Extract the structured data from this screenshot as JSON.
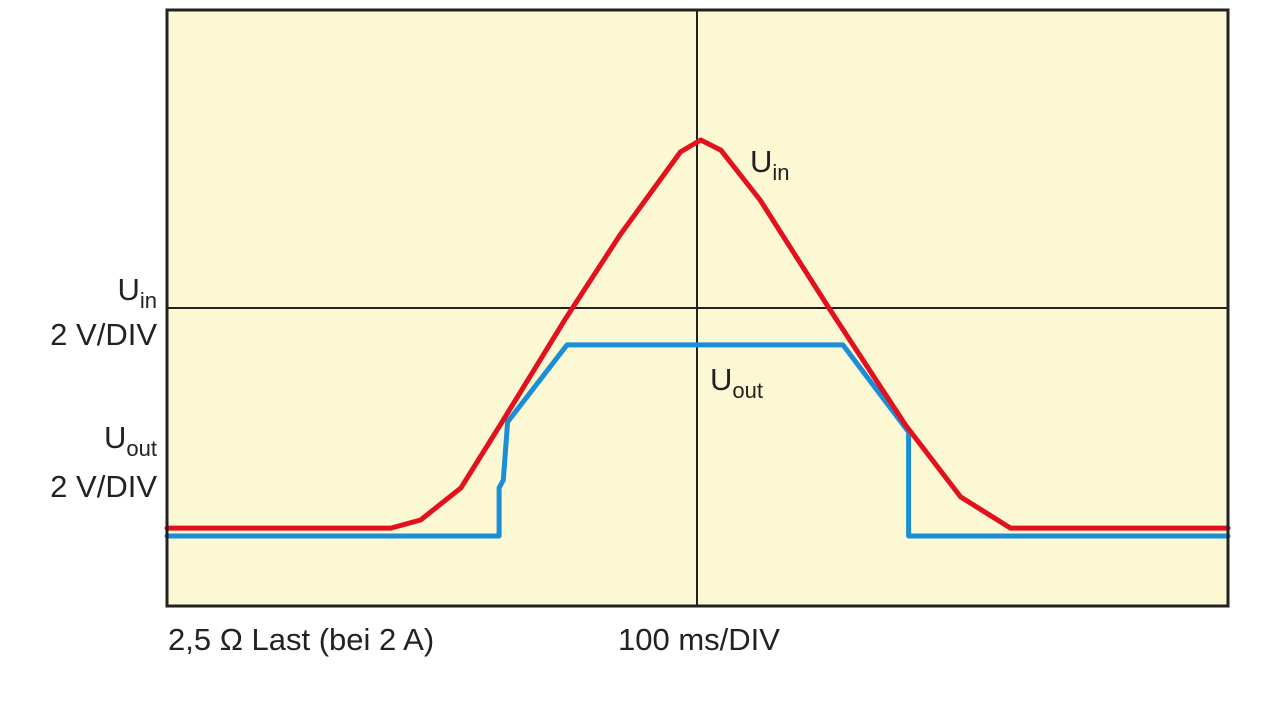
{
  "chart_data": {
    "type": "line",
    "title": "",
    "xlabel": "100 ms/DIV",
    "caption": "2,5 Ω Last (bei 2 A)",
    "y_labels": [
      {
        "name": "U",
        "sub": "in",
        "scale": "2 V/DIV"
      },
      {
        "name": "U",
        "sub": "out",
        "scale": "2 V/DIV"
      }
    ],
    "xlim": [
      -500,
      500
    ],
    "ylim": [
      -8,
      8
    ],
    "x_unit": "ms",
    "y_unit": "V",
    "grid": "center crosshair only",
    "colors": {
      "background": "#fdf8d4",
      "frame": "#222222",
      "uin": "#e3101e",
      "uout": "#1a8fd6"
    },
    "series": [
      {
        "name": "U",
        "sub": "in",
        "color": "#e3101e",
        "points": [
          [
            -500,
            -5.91
          ],
          [
            -289,
            -5.91
          ],
          [
            -261,
            -5.69
          ],
          [
            -223,
            -4.83
          ],
          [
            -186,
            -3.14
          ],
          [
            -124,
            -0.27
          ],
          [
            -73,
            1.96
          ],
          [
            -16,
            4.19
          ],
          [
            3,
            4.51
          ],
          [
            22,
            4.24
          ],
          [
            59,
            2.9
          ],
          [
            125,
            -0.05
          ],
          [
            196,
            -3.14
          ],
          [
            248,
            -5.07
          ],
          [
            295,
            -5.91
          ],
          [
            500,
            -5.91
          ]
        ]
      },
      {
        "name": "U",
        "sub": "out",
        "color": "#1a8fd6",
        "points": [
          [
            -500,
            -6.12
          ],
          [
            -187,
            -6.12
          ],
          [
            -187,
            -4.83
          ],
          [
            -183,
            -4.62
          ],
          [
            -179,
            -3.06
          ],
          [
            -123,
            -0.99
          ],
          [
            137,
            -0.99
          ],
          [
            199,
            -3.33
          ],
          [
            199,
            -6.12
          ],
          [
            500,
            -6.12
          ]
        ]
      }
    ]
  }
}
